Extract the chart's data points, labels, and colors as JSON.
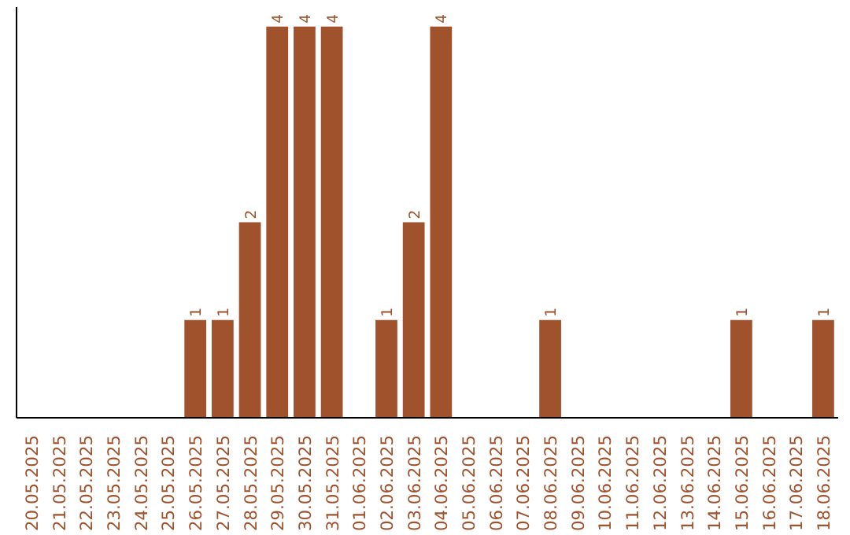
{
  "chart_data": {
    "type": "bar",
    "categories": [
      "20.05.2025",
      "21.05.2025",
      "22.05.2025",
      "23.05.2025",
      "24.05.2025",
      "25.05.2025",
      "26.05.2025",
      "27.05.2025",
      "28.05.2025",
      "29.05.2025",
      "30.05.2025",
      "31.05.2025",
      "01.06.2025",
      "02.06.2025",
      "03.06.2025",
      "04.06.2025",
      "05.06.2025",
      "06.06.2025",
      "07.06.2025",
      "08.06.2025",
      "09.06.2025",
      "10.06.2025",
      "11.06.2025",
      "12.06.2025",
      "13.06.2025",
      "14.06.2025",
      "15.06.2025",
      "16.06.2025",
      "17.06.2025",
      "18.06.2025"
    ],
    "values": [
      0,
      0,
      0,
      0,
      0,
      0,
      1,
      1,
      2,
      4,
      4,
      4,
      0,
      1,
      2,
      4,
      0,
      0,
      0,
      1,
      0,
      0,
      0,
      0,
      0,
      0,
      1,
      0,
      0,
      1
    ],
    "value_labels": [
      null,
      null,
      null,
      null,
      null,
      null,
      "1",
      "1",
      "2",
      "4",
      "4",
      "4",
      null,
      "1",
      "2",
      "4",
      null,
      null,
      null,
      "1",
      null,
      null,
      null,
      null,
      null,
      null,
      "1",
      null,
      null,
      "1"
    ],
    "color": "#a0522d",
    "grid": false,
    "tick_labels": "x"
  }
}
